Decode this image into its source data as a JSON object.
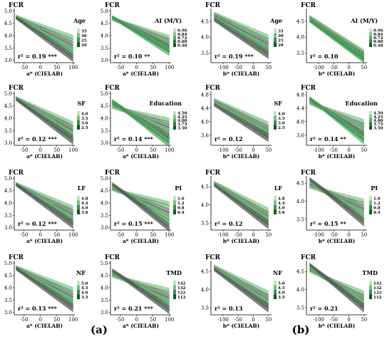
{
  "figure": {
    "label_a": "(a)",
    "label_b": "(b)"
  },
  "colors": {
    "green_light": "#a8dca8",
    "green_dark": "#0a5a1e",
    "gray_light": "#9aa09a",
    "gray_dark": "#5a625a"
  },
  "chart_data": [
    {
      "type": "line",
      "ylabel": "FCR",
      "xlabel": "a* (CIELAB)",
      "xlim": [
        -80,
        105
      ],
      "ylim": [
        2.9,
        5.1
      ],
      "xticks": [
        -50,
        0,
        50,
        100
      ],
      "yticks": [
        3.0,
        3.5,
        4.0,
        4.5,
        5.0
      ],
      "x": [
        -75,
        100
      ],
      "stat": "r² = 0.19 ***",
      "moderator": "Age",
      "legend_ticks": [
        "35",
        "30",
        "25",
        "20"
      ],
      "series": [
        {
          "values": [
            4.78,
            3.85
          ]
        },
        {
          "values": [
            4.76,
            3.6
          ]
        },
        {
          "values": [
            4.75,
            3.35
          ]
        },
        {
          "values": [
            4.73,
            3.1
          ]
        }
      ]
    },
    {
      "type": "line",
      "ylabel": "FCR",
      "xlabel": "a* (CIELAB)",
      "xlim": [
        -80,
        105
      ],
      "ylim": [
        2.9,
        5.1
      ],
      "xticks": [
        -50,
        0,
        50,
        100
      ],
      "yticks": [
        3.0,
        3.5,
        4.0,
        4.5,
        5.0
      ],
      "x": [
        -75,
        100
      ],
      "stat": "r² = 0.10 **",
      "moderator": "AI (M/Y)",
      "legend_ticks": [
        "0.96",
        "0.84",
        "0.72",
        "0.60",
        "0.48"
      ],
      "series": [
        {
          "values": [
            4.68,
            3.85
          ]
        },
        {
          "values": [
            4.7,
            3.72
          ]
        },
        {
          "values": [
            4.72,
            3.6
          ]
        },
        {
          "values": [
            4.74,
            3.48
          ]
        },
        {
          "values": [
            4.76,
            3.35
          ]
        }
      ]
    },
    {
      "type": "line",
      "ylabel": "FCR",
      "xlabel": "b* (CIELAB)",
      "xlim": [
        -140,
        60
      ],
      "ylim": [
        3.2,
        4.9
      ],
      "xticks": [
        -100,
        -50,
        0,
        50
      ],
      "yticks": [
        3.5,
        4.0,
        4.5
      ],
      "x": [
        -130,
        50
      ],
      "stat": "r² = 0.19 ***",
      "moderator": "Age",
      "legend_ticks": [
        "35",
        "30",
        "25",
        "20"
      ],
      "series": [
        {
          "values": [
            4.75,
            3.95
          ]
        },
        {
          "values": [
            4.68,
            3.78
          ]
        },
        {
          "values": [
            4.62,
            3.62
          ]
        },
        {
          "values": [
            4.55,
            3.45
          ]
        }
      ]
    },
    {
      "type": "line",
      "ylabel": "FCR",
      "xlabel": "b* (CIELAB)",
      "xlim": [
        -140,
        60
      ],
      "ylim": [
        3.2,
        4.9
      ],
      "xticks": [
        -100,
        -50,
        0,
        50
      ],
      "yticks": [
        3.5,
        4.0,
        4.5
      ],
      "x": [
        -130,
        50
      ],
      "stat": "r² = 0.10",
      "moderator": "AI (M/Y)",
      "legend_ticks": [
        "0.96",
        "0.84",
        "0.72",
        "0.60",
        "0.48"
      ],
      "series": [
        {
          "values": [
            4.65,
            3.48
          ]
        },
        {
          "values": [
            4.62,
            3.44
          ]
        },
        {
          "values": [
            4.58,
            3.4
          ]
        },
        {
          "values": [
            4.55,
            3.36
          ]
        },
        {
          "values": [
            4.52,
            3.32
          ]
        }
      ]
    },
    {
      "type": "line",
      "ylabel": "FCR",
      "xlabel": "a* (CIELAB)",
      "xlim": [
        -80,
        105
      ],
      "ylim": [
        2.9,
        5.1
      ],
      "xticks": [
        -50,
        0,
        50,
        100
      ],
      "yticks": [
        3.0,
        3.5,
        4.0,
        4.5,
        5.0
      ],
      "x": [
        -75,
        100
      ],
      "stat": "r² = 0.12 ***",
      "moderator": "SF",
      "legend_ticks": [
        "4.0",
        "3.5",
        "3.0",
        "2.5"
      ],
      "series": [
        {
          "values": [
            4.83,
            3.7
          ]
        },
        {
          "values": [
            4.82,
            3.5
          ]
        },
        {
          "values": [
            4.8,
            3.3
          ]
        },
        {
          "values": [
            4.78,
            3.1
          ]
        }
      ]
    },
    {
      "type": "line",
      "ylabel": "FCR",
      "xlabel": "a* (CIELAB)",
      "xlim": [
        -80,
        105
      ],
      "ylim": [
        2.9,
        5.1
      ],
      "xticks": [
        -50,
        0,
        50,
        100
      ],
      "yticks": [
        3.0,
        3.5,
        4.0,
        4.5,
        5.0
      ],
      "x": [
        -75,
        100
      ],
      "stat": "r² = 0.14 ***",
      "moderator": "Education",
      "legend_ticks": [
        "4.50",
        "4.25",
        "4.00",
        "3.75",
        "3.50"
      ],
      "series": [
        {
          "values": [
            4.45,
            3.85
          ]
        },
        {
          "values": [
            4.52,
            3.62
          ]
        },
        {
          "values": [
            4.58,
            3.4
          ]
        },
        {
          "values": [
            4.65,
            3.18
          ]
        },
        {
          "values": [
            4.72,
            2.98
          ]
        }
      ]
    },
    {
      "type": "line",
      "ylabel": "FCR",
      "xlabel": "b* (CIELAB)",
      "xlim": [
        -140,
        60
      ],
      "ylim": [
        3.3,
        4.9
      ],
      "xticks": [
        -100,
        -50,
        0,
        50
      ],
      "yticks": [
        3.6,
        4.0,
        4.4,
        4.8
      ],
      "x": [
        -130,
        50
      ],
      "stat": "r² = 0.12",
      "moderator": "SF",
      "legend_ticks": [
        "4.0",
        "3.5",
        "3.0",
        "2.5"
      ],
      "series": [
        {
          "values": [
            4.65,
            3.88
          ]
        },
        {
          "values": [
            4.6,
            3.76
          ]
        },
        {
          "values": [
            4.55,
            3.64
          ]
        },
        {
          "values": [
            4.5,
            3.52
          ]
        }
      ]
    },
    {
      "type": "line",
      "ylabel": "FCR",
      "xlabel": "b* (CIELAB)",
      "xlim": [
        -140,
        60
      ],
      "ylim": [
        3.3,
        4.9
      ],
      "xticks": [
        -100,
        -50,
        0,
        50
      ],
      "yticks": [
        3.6,
        4.0,
        4.4,
        4.8
      ],
      "x": [
        -130,
        50
      ],
      "stat": "r² = 0.14 **",
      "moderator": "Education",
      "legend_ticks": [
        "4.50",
        "4.25",
        "4.00",
        "3.75",
        "3.50"
      ],
      "series": [
        {
          "values": [
            4.55,
            3.95
          ]
        },
        {
          "values": [
            4.58,
            3.82
          ]
        },
        {
          "values": [
            4.62,
            3.7
          ]
        },
        {
          "values": [
            4.66,
            3.58
          ]
        },
        {
          "values": [
            4.7,
            3.45
          ]
        }
      ]
    },
    {
      "type": "line",
      "ylabel": "FCR",
      "xlabel": "a* (CIELAB)",
      "xlim": [
        -80,
        105
      ],
      "ylim": [
        2.9,
        5.1
      ],
      "xticks": [
        -50,
        0,
        50,
        100
      ],
      "yticks": [
        3.0,
        3.5,
        4.0,
        4.5,
        5.0
      ],
      "x": [
        -75,
        100
      ],
      "stat": "r² = 0.12 ***",
      "moderator": "LF",
      "legend_ticks": [
        "4.8",
        "4.4",
        "4.0",
        "3.6"
      ],
      "series": [
        {
          "values": [
            4.78,
            3.72
          ]
        },
        {
          "values": [
            4.77,
            3.52
          ]
        },
        {
          "values": [
            4.76,
            3.32
          ]
        },
        {
          "values": [
            4.75,
            3.12
          ]
        }
      ]
    },
    {
      "type": "line",
      "ylabel": "FCR",
      "xlabel": "a* (CIELAB)",
      "xlim": [
        -80,
        105
      ],
      "ylim": [
        2.9,
        5.1
      ],
      "xticks": [
        -50,
        0,
        50,
        100
      ],
      "yticks": [
        3.0,
        3.5,
        4.0,
        4.5,
        5.0
      ],
      "x": [
        -75,
        100
      ],
      "stat": "r² = 0.15 ***",
      "moderator": "PI",
      "legend_ticks": [
        "1.6",
        "1.2",
        "0.8",
        "0.4"
      ],
      "series": [
        {
          "values": [
            4.55,
            3.9
          ]
        },
        {
          "values": [
            4.62,
            3.6
          ]
        },
        {
          "values": [
            4.7,
            3.3
          ]
        },
        {
          "values": [
            4.78,
            3.0
          ]
        }
      ]
    },
    {
      "type": "line",
      "ylabel": "FCR",
      "xlabel": "b* (CIELAB)",
      "xlim": [
        -140,
        60
      ],
      "ylim": [
        3.3,
        4.8
      ],
      "xticks": [
        -100,
        -50,
        0,
        50
      ],
      "yticks": [
        3.5,
        4.0,
        4.5
      ],
      "x": [
        -130,
        50
      ],
      "stat": "r² = 0.12",
      "moderator": "LF",
      "legend_ticks": [
        "4.8",
        "4.4",
        "4.0",
        "3.6"
      ],
      "series": [
        {
          "values": [
            4.62,
            3.8
          ]
        },
        {
          "values": [
            4.6,
            3.68
          ]
        },
        {
          "values": [
            4.58,
            3.56
          ]
        },
        {
          "values": [
            4.55,
            3.44
          ]
        }
      ]
    },
    {
      "type": "line",
      "ylabel": "FCR",
      "xlabel": "b* (CIELAB)",
      "xlim": [
        -140,
        60
      ],
      "ylim": [
        3.2,
        4.7
      ],
      "xticks": [
        -100,
        -50,
        0,
        50
      ],
      "yticks": [
        3.5,
        4.0,
        4.5
      ],
      "x": [
        -130,
        50
      ],
      "stat": "r² = 0.15 **",
      "moderator": "PI",
      "legend_ticks": [
        "1.6",
        "1.2",
        "0.8",
        "0.4"
      ],
      "series": [
        {
          "values": [
            4.4,
            3.95
          ]
        },
        {
          "values": [
            4.48,
            3.78
          ]
        },
        {
          "values": [
            4.55,
            3.6
          ]
        },
        {
          "values": [
            4.62,
            3.42
          ]
        }
      ]
    },
    {
      "type": "line",
      "ylabel": "FCR",
      "xlabel": "a* (CIELAB)",
      "xlim": [
        -80,
        105
      ],
      "ylim": [
        2.9,
        5.1
      ],
      "xticks": [
        -50,
        0,
        50,
        100
      ],
      "yticks": [
        3.0,
        3.5,
        4.0,
        4.5,
        5.0
      ],
      "x": [
        -75,
        100
      ],
      "stat": "r² = 0.13 ***",
      "moderator": "NF",
      "legend_ticks": [
        "5.0",
        "4.5",
        "4.0",
        "3.5"
      ],
      "series": [
        {
          "values": [
            4.85,
            3.85
          ]
        },
        {
          "values": [
            4.83,
            3.62
          ]
        },
        {
          "values": [
            4.81,
            3.4
          ]
        },
        {
          "values": [
            4.78,
            3.18
          ]
        }
      ]
    },
    {
      "type": "line",
      "ylabel": "FCR",
      "xlabel": "a* (CIELAB)",
      "xlim": [
        -80,
        105
      ],
      "ylim": [
        2.9,
        5.1
      ],
      "xticks": [
        -50,
        0,
        50,
        100
      ],
      "yticks": [
        3.0,
        3.5,
        4.0,
        4.5,
        5.0
      ],
      "x": [
        -75,
        100
      ],
      "stat": "r² = 0.21 ***",
      "moderator": "TMD",
      "legend_ticks": [
        "142",
        "132",
        "122",
        "112"
      ],
      "series": [
        {
          "values": [
            4.48,
            3.82
          ]
        },
        {
          "values": [
            4.56,
            3.58
          ]
        },
        {
          "values": [
            4.64,
            3.34
          ]
        },
        {
          "values": [
            4.72,
            3.1
          ]
        }
      ]
    },
    {
      "type": "line",
      "ylabel": "FCR",
      "xlabel": "b* (CIELAB)",
      "xlim": [
        -140,
        60
      ],
      "ylim": [
        3.3,
        4.8
      ],
      "xticks": [
        -100,
        -50,
        0,
        50
      ],
      "yticks": [
        3.5,
        4.0,
        4.5
      ],
      "x": [
        -130,
        50
      ],
      "stat": "r² = 0.13",
      "moderator": "NF",
      "legend_ticks": [
        "5.0",
        "4.5",
        "4.0",
        "3.5"
      ],
      "series": [
        {
          "values": [
            4.65,
            3.85
          ]
        },
        {
          "values": [
            4.62,
            3.72
          ]
        },
        {
          "values": [
            4.59,
            3.6
          ]
        },
        {
          "values": [
            4.56,
            3.48
          ]
        }
      ]
    },
    {
      "type": "line",
      "ylabel": "FCR",
      "xlabel": "b* (CIELAB)",
      "xlim": [
        -140,
        60
      ],
      "ylim": [
        3.3,
        4.8
      ],
      "xticks": [
        -100,
        -50,
        0,
        50
      ],
      "yticks": [
        3.5,
        4.0,
        4.5
      ],
      "x": [
        -130,
        50
      ],
      "stat": "r² = 0.21",
      "moderator": "TMD",
      "legend_ticks": [
        "142",
        "132",
        "122",
        "112"
      ],
      "series": [
        {
          "values": [
            4.52,
            3.85
          ]
        },
        {
          "values": [
            4.58,
            3.72
          ]
        },
        {
          "values": [
            4.64,
            3.6
          ]
        },
        {
          "values": [
            4.7,
            3.48
          ]
        }
      ]
    }
  ]
}
